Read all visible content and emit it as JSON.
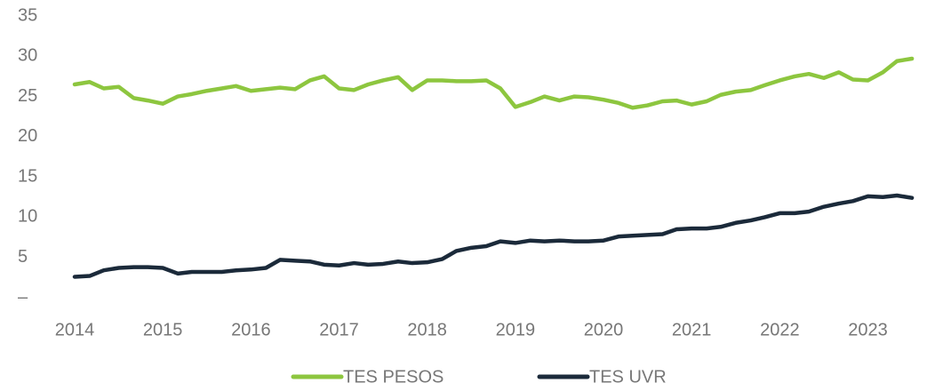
{
  "chart_data": {
    "type": "line",
    "x": [
      2014,
      2014.17,
      2014.33,
      2014.5,
      2014.67,
      2014.83,
      2015,
      2015.17,
      2015.33,
      2015.5,
      2015.67,
      2015.83,
      2016,
      2016.17,
      2016.33,
      2016.5,
      2016.67,
      2016.83,
      2017,
      2017.17,
      2017.33,
      2017.5,
      2017.67,
      2017.83,
      2018,
      2018.17,
      2018.33,
      2018.5,
      2018.67,
      2018.83,
      2019,
      2019.17,
      2019.33,
      2019.5,
      2019.67,
      2019.83,
      2020,
      2020.17,
      2020.33,
      2020.5,
      2020.67,
      2020.83,
      2021,
      2021.17,
      2021.33,
      2021.5,
      2021.67,
      2021.83,
      2022,
      2022.17,
      2022.33,
      2022.5,
      2022.67,
      2022.83,
      2023,
      2023.17,
      2023.33,
      2023.5
    ],
    "series": [
      {
        "name": "TES PESOS",
        "color": "#8dc63f",
        "values": [
          26.5,
          26.8,
          26.0,
          26.2,
          24.8,
          24.5,
          24.1,
          25.0,
          25.3,
          25.7,
          26.0,
          26.3,
          25.7,
          25.9,
          26.1,
          25.9,
          27.0,
          27.5,
          26.0,
          25.8,
          26.5,
          27.0,
          27.4,
          25.8,
          27.0,
          27.0,
          26.9,
          26.9,
          27.0,
          26.0,
          23.7,
          24.3,
          25.0,
          24.5,
          25.0,
          24.9,
          24.6,
          24.2,
          23.6,
          23.9,
          24.4,
          24.5,
          24.0,
          24.4,
          25.2,
          25.6,
          25.8,
          26.4,
          27.0,
          27.5,
          27.8,
          27.3,
          28.0,
          27.1,
          27.0,
          28.0,
          29.4,
          29.7
        ]
      },
      {
        "name": "TES UVR",
        "color": "#1b2a3a",
        "values": [
          2.6,
          2.7,
          3.4,
          3.7,
          3.8,
          3.8,
          3.7,
          3.0,
          3.2,
          3.2,
          3.2,
          3.4,
          3.5,
          3.7,
          4.7,
          4.6,
          4.5,
          4.1,
          4.0,
          4.3,
          4.1,
          4.2,
          4.5,
          4.3,
          4.4,
          4.8,
          5.8,
          6.2,
          6.4,
          7.0,
          6.8,
          7.1,
          7.0,
          7.1,
          7.0,
          7.0,
          7.1,
          7.6,
          7.7,
          7.8,
          7.9,
          8.5,
          8.6,
          8.6,
          8.8,
          9.3,
          9.6,
          10.0,
          10.5,
          10.5,
          10.7,
          11.3,
          11.7,
          12.0,
          12.6,
          12.5,
          12.7,
          12.4
        ]
      }
    ],
    "xlim": [
      2014,
      2023.6
    ],
    "xticks": [
      2014,
      2015,
      2016,
      2017,
      2018,
      2019,
      2020,
      2021,
      2022,
      2023
    ],
    "ylim": [
      0,
      35
    ],
    "yticks": [
      {
        "value": 0,
        "label": "–"
      },
      5,
      10,
      15,
      20,
      25,
      30,
      35
    ],
    "grid": false,
    "legend": "bottom"
  }
}
